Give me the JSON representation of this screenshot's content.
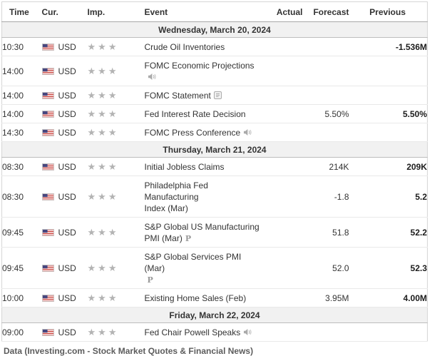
{
  "table": {
    "columns": [
      "Time",
      "Cur.",
      "Imp.",
      "Event",
      "Actual",
      "Forecast",
      "Previous"
    ],
    "days": [
      {
        "label": "Wednesday, March 20, 2024",
        "rows": [
          {
            "time": "10:30",
            "currency": "USD",
            "flag": "us-flag",
            "importance": 3,
            "event_lines": [
              [
                {
                  "t": "Crude Oil Inventories"
                }
              ]
            ],
            "actual": "",
            "forecast": "",
            "previous": "-1.536M"
          },
          {
            "time": "14:00",
            "currency": "USD",
            "flag": "us-flag",
            "importance": 3,
            "event_lines": [
              [
                {
                  "t": "FOMC Economic Projections"
                },
                {
                  "icon": "speaker"
                }
              ]
            ],
            "actual": "",
            "forecast": "",
            "previous": ""
          },
          {
            "time": "14:00",
            "currency": "USD",
            "flag": "us-flag",
            "importance": 3,
            "event_lines": [
              [
                {
                  "t": "FOMC Statement"
                },
                {
                  "icon": "report"
                }
              ]
            ],
            "actual": "",
            "forecast": "",
            "previous": ""
          },
          {
            "time": "14:00",
            "currency": "USD",
            "flag": "us-flag",
            "importance": 3,
            "event_lines": [
              [
                {
                  "t": "Fed Interest Rate Decision"
                }
              ]
            ],
            "actual": "",
            "forecast": "5.50%",
            "previous": "5.50%"
          },
          {
            "time": "14:30",
            "currency": "USD",
            "flag": "us-flag",
            "importance": 3,
            "event_lines": [
              [
                {
                  "t": "FOMC Press Conference"
                },
                {
                  "icon": "speaker"
                }
              ]
            ],
            "actual": "",
            "forecast": "",
            "previous": ""
          }
        ]
      },
      {
        "label": "Thursday, March 21, 2024",
        "rows": [
          {
            "time": "08:30",
            "currency": "USD",
            "flag": "us-flag",
            "importance": 3,
            "event_lines": [
              [
                {
                  "t": "Initial Jobless Claims"
                }
              ]
            ],
            "actual": "",
            "forecast": "214K",
            "previous": "209K"
          },
          {
            "time": "08:30",
            "currency": "USD",
            "flag": "us-flag",
            "importance": 3,
            "event_lines": [
              [
                {
                  "t": "Philadelphia Fed Manufacturing"
                }
              ],
              [
                {
                  "t": "Index (Mar)"
                }
              ]
            ],
            "actual": "",
            "forecast": "-1.8",
            "previous": "5.2"
          },
          {
            "time": "09:45",
            "currency": "USD",
            "flag": "us-flag",
            "importance": 3,
            "event_lines": [
              [
                {
                  "t": "S&P Global US Manufacturing"
                }
              ],
              [
                {
                  "t": "PMI (Mar)"
                },
                {
                  "icon": "prelim"
                }
              ]
            ],
            "actual": "",
            "forecast": "51.8",
            "previous": "52.2"
          },
          {
            "time": "09:45",
            "currency": "USD",
            "flag": "us-flag",
            "importance": 3,
            "event_lines": [
              [
                {
                  "t": "S&P Global Services PMI (Mar)"
                }
              ],
              [
                {
                  "icon": "prelim"
                }
              ]
            ],
            "actual": "",
            "forecast": "52.0",
            "previous": "52.3"
          },
          {
            "time": "10:00",
            "currency": "USD",
            "flag": "us-flag",
            "importance": 3,
            "event_lines": [
              [
                {
                  "t": "Existing Home Sales (Feb)"
                }
              ]
            ],
            "actual": "",
            "forecast": "3.95M",
            "previous": "4.00M"
          }
        ]
      },
      {
        "label": "Friday, March 22, 2024",
        "rows": [
          {
            "time": "09:00",
            "currency": "USD",
            "flag": "us-flag",
            "importance": 3,
            "event_lines": [
              [
                {
                  "t": "Fed Chair Powell Speaks"
                },
                {
                  "icon": "speaker"
                }
              ]
            ],
            "actual": "",
            "forecast": "",
            "previous": ""
          }
        ]
      }
    ]
  },
  "icons": {
    "star": "★",
    "prelim_label": "P"
  },
  "colors": {
    "star": "#b3b3b3",
    "day_band_bg": "#f1f1f1",
    "icon_gray": "#aaaaaa",
    "flag_blue": "#46467f",
    "flag_red": "#c9413c",
    "text": "#333333"
  },
  "footer": {
    "text": "Data (Investing.com - Stock Market Quotes & Financial News)"
  }
}
